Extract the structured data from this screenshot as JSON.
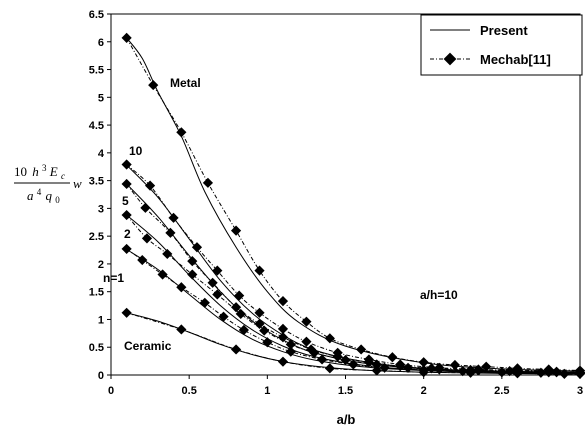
{
  "chart_data": {
    "type": "line",
    "xlabel": "a/b",
    "ylabel": {
      "num_coef": "10",
      "num_h": "h",
      "num_h_exp": "3",
      "num_E": "E",
      "num_E_sub": "c",
      "den_a": "a",
      "den_a_exp": "4",
      "den_q": "q",
      "den_q_sub": "0",
      "tail": "w"
    },
    "xlim": [
      0,
      3
    ],
    "ylim": [
      0,
      6.5
    ],
    "xticks": [
      "0",
      "0.5",
      "1",
      "1.5",
      "2",
      "2.5",
      "3"
    ],
    "yticks": [
      "0",
      "0.5",
      "1",
      "1.5",
      "2",
      "2.5",
      "3",
      "3.5",
      "4",
      "4.5",
      "5",
      "5.5",
      "6",
      "6.5"
    ],
    "legend": {
      "present": "Present",
      "mechab": "Mechab[11]"
    },
    "legend_position": "top-right",
    "annotations": {
      "metal": "Metal",
      "n10": "10",
      "n5": "5",
      "n2": "2",
      "n1": "n=1",
      "ceramic": "Ceramic",
      "ratio": "a/h=10"
    },
    "series": [
      {
        "key": "metal",
        "present": {
          "x": [
            0.1,
            0.2,
            0.3,
            0.45,
            0.6,
            0.8,
            1.0,
            1.2,
            1.5,
            2.0,
            2.5,
            3.0
          ],
          "y": [
            6.07,
            5.7,
            5.1,
            4.3,
            3.3,
            2.3,
            1.5,
            0.95,
            0.52,
            0.22,
            0.11,
            0.07
          ]
        },
        "mechab": {
          "x": [
            0.1,
            0.27,
            0.45,
            0.62,
            0.8,
            0.95,
            1.1,
            1.25,
            1.4,
            1.6,
            1.8,
            2.0,
            2.2,
            2.4,
            2.6,
            2.8,
            3.0
          ],
          "y": [
            6.07,
            5.22,
            4.37,
            3.46,
            2.6,
            1.88,
            1.33,
            0.96,
            0.66,
            0.46,
            0.32,
            0.23,
            0.18,
            0.15,
            0.12,
            0.1,
            0.08
          ]
        }
      },
      {
        "key": "n10",
        "present": {
          "x": [
            0.1,
            0.3,
            0.5,
            0.7,
            0.9,
            1.1,
            1.3,
            1.6,
            2.0,
            2.5,
            3.0
          ],
          "y": [
            3.78,
            3.2,
            2.45,
            1.7,
            1.12,
            0.72,
            0.45,
            0.25,
            0.12,
            0.07,
            0.05
          ]
        },
        "mechab": {
          "x": [
            0.1,
            0.25,
            0.4,
            0.55,
            0.68,
            0.82,
            0.95,
            1.1,
            1.25,
            1.45,
            1.65,
            1.85,
            2.1,
            2.35,
            2.6,
            2.85,
            3.0
          ],
          "y": [
            3.79,
            3.41,
            2.83,
            2.3,
            1.88,
            1.43,
            1.12,
            0.83,
            0.6,
            0.4,
            0.28,
            0.19,
            0.13,
            0.1,
            0.08,
            0.06,
            0.05
          ]
        }
      },
      {
        "key": "n5",
        "present": {
          "x": [
            0.1,
            0.3,
            0.5,
            0.7,
            0.9,
            1.1,
            1.3,
            1.6,
            2.0,
            2.5,
            3.0
          ],
          "y": [
            3.44,
            2.85,
            2.15,
            1.5,
            0.98,
            0.63,
            0.4,
            0.22,
            0.11,
            0.06,
            0.04
          ]
        },
        "mechab": {
          "x": [
            0.1,
            0.22,
            0.38,
            0.52,
            0.65,
            0.8,
            0.95,
            1.1,
            1.28,
            1.45,
            1.65,
            1.85,
            2.05,
            2.3,
            2.55,
            2.8,
            3.0
          ],
          "y": [
            3.44,
            3.01,
            2.56,
            2.05,
            1.66,
            1.22,
            0.92,
            0.68,
            0.46,
            0.33,
            0.23,
            0.16,
            0.12,
            0.09,
            0.07,
            0.05,
            0.04
          ]
        }
      },
      {
        "key": "n2",
        "present": {
          "x": [
            0.1,
            0.3,
            0.5,
            0.7,
            0.9,
            1.1,
            1.3,
            1.6,
            2.0,
            2.5,
            3.0
          ],
          "y": [
            2.88,
            2.4,
            1.8,
            1.25,
            0.82,
            0.52,
            0.33,
            0.18,
            0.09,
            0.05,
            0.03
          ]
        },
        "mechab": {
          "x": [
            0.1,
            0.23,
            0.36,
            0.52,
            0.68,
            0.83,
            0.98,
            1.15,
            1.3,
            1.5,
            1.7,
            1.9,
            2.1,
            2.35,
            2.6,
            2.85,
            3.0
          ],
          "y": [
            2.88,
            2.46,
            2.18,
            1.81,
            1.45,
            1.1,
            0.8,
            0.55,
            0.4,
            0.27,
            0.19,
            0.13,
            0.1,
            0.08,
            0.06,
            0.05,
            0.04
          ]
        }
      },
      {
        "key": "n1",
        "present": {
          "x": [
            0.1,
            0.3,
            0.5,
            0.7,
            0.9,
            1.1,
            1.3,
            1.6,
            2.0,
            2.5,
            3.0
          ],
          "y": [
            2.26,
            1.9,
            1.45,
            1.0,
            0.65,
            0.42,
            0.27,
            0.15,
            0.08,
            0.04,
            0.03
          ]
        },
        "mechab": {
          "x": [
            0.1,
            0.2,
            0.33,
            0.45,
            0.6,
            0.72,
            0.85,
            1.0,
            1.15,
            1.35,
            1.55,
            1.75,
            2.0,
            2.25,
            2.5,
            2.75,
            3.0
          ],
          "y": [
            2.27,
            2.07,
            1.81,
            1.58,
            1.3,
            1.05,
            0.81,
            0.59,
            0.42,
            0.28,
            0.19,
            0.13,
            0.09,
            0.07,
            0.05,
            0.04,
            0.03
          ]
        }
      },
      {
        "key": "ceramic",
        "present": {
          "x": [
            0.1,
            0.3,
            0.5,
            0.7,
            0.9,
            1.1,
            1.3,
            1.6,
            2.0,
            2.5,
            3.0
          ],
          "y": [
            1.12,
            0.97,
            0.77,
            0.55,
            0.37,
            0.24,
            0.16,
            0.09,
            0.05,
            0.03,
            0.02
          ]
        },
        "mechab": {
          "x": [
            0.1,
            0.45,
            0.8,
            1.1,
            1.4,
            1.7,
            2.0,
            2.3,
            2.6,
            2.9,
            3.0
          ],
          "y": [
            1.12,
            0.82,
            0.46,
            0.24,
            0.12,
            0.08,
            0.05,
            0.04,
            0.03,
            0.02,
            0.02
          ]
        }
      }
    ]
  }
}
